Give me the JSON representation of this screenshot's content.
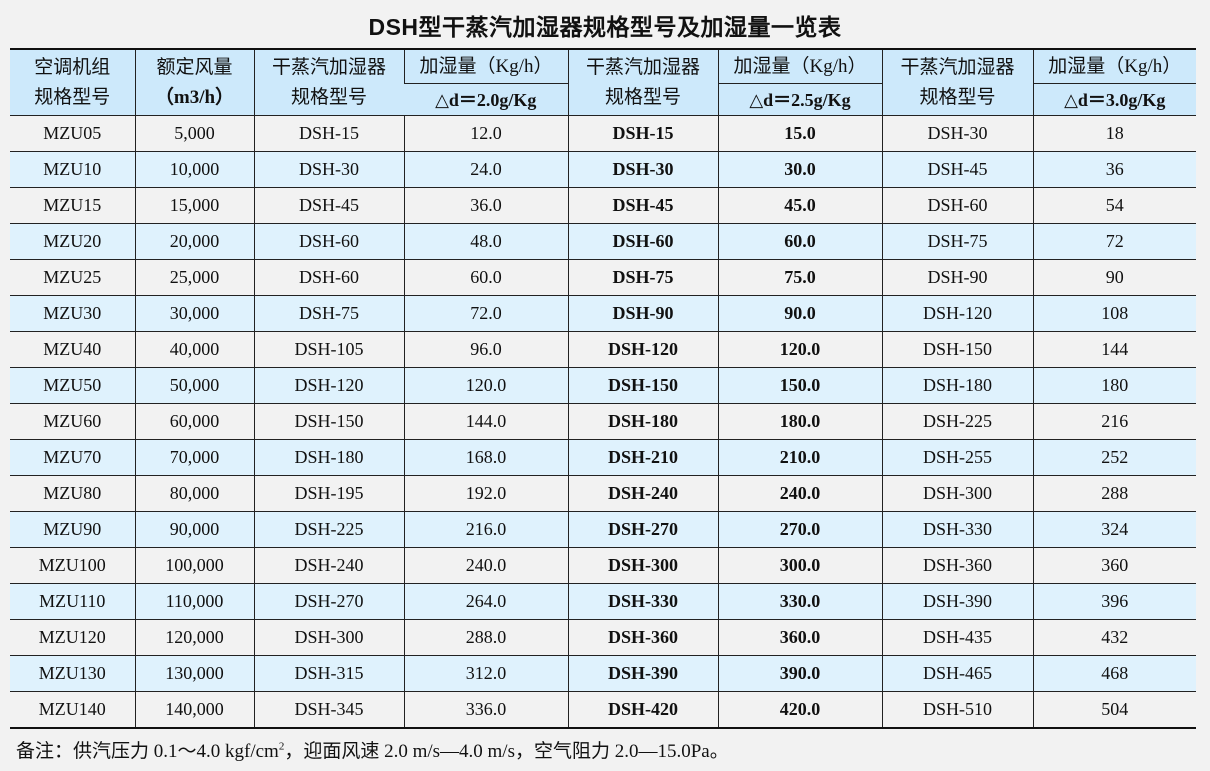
{
  "title": "DSH型干蒸汽加湿器规格型号及加湿量一览表",
  "table": {
    "headers": {
      "unit_model_line1": "空调机组",
      "unit_model_line2": "规格型号",
      "airflow_line1": "额定风量",
      "airflow_line2": "（m3/h）",
      "humidifier_line1": "干蒸汽加湿器",
      "humidifier_line2": "规格型号",
      "capacity_label": "加湿量（Kg/h）",
      "delta_2_0": "△d＝2.0g/Kg",
      "delta_2_5": "△d＝2.5g/Kg",
      "delta_3_0": "△d＝3.0g/Kg"
    },
    "rows": [
      {
        "unit": "MZU05",
        "airflow": "5,000",
        "dsh_20": "DSH-15",
        "cap_20": "12.0",
        "dsh_25": "DSH-15",
        "cap_25": "15.0",
        "dsh_30": "DSH-30",
        "cap_30": "18"
      },
      {
        "unit": "MZU10",
        "airflow": "10,000",
        "dsh_20": "DSH-30",
        "cap_20": "24.0",
        "dsh_25": "DSH-30",
        "cap_25": "30.0",
        "dsh_30": "DSH-45",
        "cap_30": "36"
      },
      {
        "unit": "MZU15",
        "airflow": "15,000",
        "dsh_20": "DSH-45",
        "cap_20": "36.0",
        "dsh_25": "DSH-45",
        "cap_25": "45.0",
        "dsh_30": "DSH-60",
        "cap_30": "54"
      },
      {
        "unit": "MZU20",
        "airflow": "20,000",
        "dsh_20": "DSH-60",
        "cap_20": "48.0",
        "dsh_25": "DSH-60",
        "cap_25": "60.0",
        "dsh_30": "DSH-75",
        "cap_30": "72"
      },
      {
        "unit": "MZU25",
        "airflow": "25,000",
        "dsh_20": "DSH-60",
        "cap_20": "60.0",
        "dsh_25": "DSH-75",
        "cap_25": "75.0",
        "dsh_30": "DSH-90",
        "cap_30": "90"
      },
      {
        "unit": "MZU30",
        "airflow": "30,000",
        "dsh_20": "DSH-75",
        "cap_20": "72.0",
        "dsh_25": "DSH-90",
        "cap_25": "90.0",
        "dsh_30": "DSH-120",
        "cap_30": "108"
      },
      {
        "unit": "MZU40",
        "airflow": "40,000",
        "dsh_20": "DSH-105",
        "cap_20": "96.0",
        "dsh_25": "DSH-120",
        "cap_25": "120.0",
        "dsh_30": "DSH-150",
        "cap_30": "144"
      },
      {
        "unit": "MZU50",
        "airflow": "50,000",
        "dsh_20": "DSH-120",
        "cap_20": "120.0",
        "dsh_25": "DSH-150",
        "cap_25": "150.0",
        "dsh_30": "DSH-180",
        "cap_30": "180"
      },
      {
        "unit": "MZU60",
        "airflow": "60,000",
        "dsh_20": "DSH-150",
        "cap_20": "144.0",
        "dsh_25": "DSH-180",
        "cap_25": "180.0",
        "dsh_30": "DSH-225",
        "cap_30": "216"
      },
      {
        "unit": "MZU70",
        "airflow": "70,000",
        "dsh_20": "DSH-180",
        "cap_20": "168.0",
        "dsh_25": "DSH-210",
        "cap_25": "210.0",
        "dsh_30": "DSH-255",
        "cap_30": "252"
      },
      {
        "unit": "MZU80",
        "airflow": "80,000",
        "dsh_20": "DSH-195",
        "cap_20": "192.0",
        "dsh_25": "DSH-240",
        "cap_25": "240.0",
        "dsh_30": "DSH-300",
        "cap_30": "288"
      },
      {
        "unit": "MZU90",
        "airflow": "90,000",
        "dsh_20": "DSH-225",
        "cap_20": "216.0",
        "dsh_25": "DSH-270",
        "cap_25": "270.0",
        "dsh_30": "DSH-330",
        "cap_30": "324"
      },
      {
        "unit": "MZU100",
        "airflow": "100,000",
        "dsh_20": "DSH-240",
        "cap_20": "240.0",
        "dsh_25": "DSH-300",
        "cap_25": "300.0",
        "dsh_30": "DSH-360",
        "cap_30": "360"
      },
      {
        "unit": "MZU110",
        "airflow": "110,000",
        "dsh_20": "DSH-270",
        "cap_20": "264.0",
        "dsh_25": "DSH-330",
        "cap_25": "330.0",
        "dsh_30": "DSH-390",
        "cap_30": "396"
      },
      {
        "unit": "MZU120",
        "airflow": "120,000",
        "dsh_20": "DSH-300",
        "cap_20": "288.0",
        "dsh_25": "DSH-360",
        "cap_25": "360.0",
        "dsh_30": "DSH-435",
        "cap_30": "432"
      },
      {
        "unit": "MZU130",
        "airflow": "130,000",
        "dsh_20": "DSH-315",
        "cap_20": "312.0",
        "dsh_25": "DSH-390",
        "cap_25": "390.0",
        "dsh_30": "DSH-465",
        "cap_30": "468"
      },
      {
        "unit": "MZU140",
        "airflow": "140,000",
        "dsh_20": "DSH-345",
        "cap_20": "336.0",
        "dsh_25": "DSH-420",
        "cap_25": "420.0",
        "dsh_30": "DSH-510",
        "cap_30": "504"
      }
    ]
  },
  "note": {
    "prefix": "备注：供汽压力 0.1～4.0 kgf/cm",
    "superscript": "2",
    "suffix": "，迎面风速 2.0 m/s—4.0 m/s，空气阻力 2.0—15.0Pa。"
  },
  "colors": {
    "background": "#f2f2f2",
    "header_fill": "#cde9fb",
    "alt_row_fill": "#dff2fd",
    "text": "#111111"
  }
}
